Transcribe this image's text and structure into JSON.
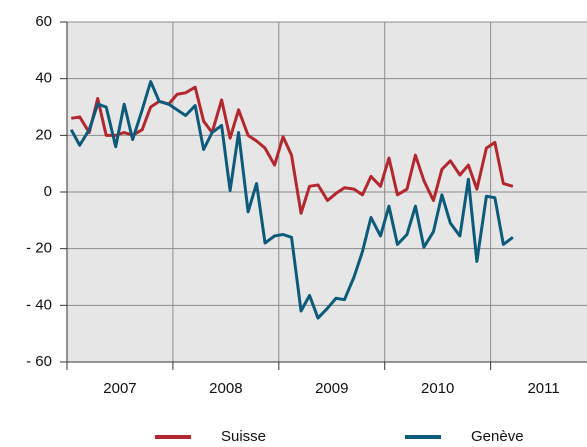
{
  "chart_data": {
    "type": "line",
    "x": [
      2007.04,
      2007.12,
      2007.21,
      2007.29,
      2007.37,
      2007.46,
      2007.54,
      2007.62,
      2007.71,
      2007.79,
      2007.87,
      2007.96,
      2008.04,
      2008.12,
      2008.21,
      2008.29,
      2008.37,
      2008.46,
      2008.54,
      2008.62,
      2008.71,
      2008.79,
      2008.87,
      2008.96,
      2009.04,
      2009.12,
      2009.21,
      2009.29,
      2009.37,
      2009.46,
      2009.54,
      2009.62,
      2009.71,
      2009.79,
      2009.87,
      2009.96,
      2010.04,
      2010.12,
      2010.21,
      2010.29,
      2010.37,
      2010.46,
      2010.54,
      2010.62,
      2010.71,
      2010.79,
      2010.87,
      2010.96,
      2011.04,
      2011.12,
      2011.21
    ],
    "series": [
      {
        "name": "Suisse",
        "color": "#b3282e",
        "values": [
          26,
          26.5,
          21,
          33,
          20,
          20,
          21,
          20,
          22,
          30,
          32,
          31,
          34.5,
          35,
          37,
          25,
          21,
          32.5,
          19,
          29,
          20,
          18,
          15.5,
          9.5,
          19.5,
          13,
          -7.5,
          2,
          2.5,
          -3,
          -0.5,
          1.5,
          1,
          -1,
          5.5,
          2,
          12,
          -1,
          1,
          13,
          4,
          -3,
          8,
          11,
          6,
          9.5,
          1,
          15.5,
          17.5,
          3,
          2
        ]
      },
      {
        "name": "Genève",
        "color": "#0d5b7b",
        "values": [
          22,
          16.5,
          22,
          31,
          30,
          16,
          31,
          18.5,
          29,
          39,
          32,
          31,
          29,
          27,
          30.5,
          15,
          21,
          23.5,
          0.5,
          21,
          -7,
          3,
          -18,
          -15.5,
          -15,
          -16,
          -42,
          -36.5,
          -44.5,
          -41,
          -37.5,
          -38,
          -30,
          -21,
          -9,
          -15.5,
          -5,
          -18.5,
          -15,
          -5,
          -19.5,
          -14,
          -1,
          -11,
          -15.5,
          4.5,
          -24.5,
          -1.5,
          -2,
          -18.5,
          -16
        ]
      }
    ],
    "xlim": [
      2007,
      2011.91
    ],
    "xticks": [
      {
        "value": 2007.5,
        "label": "2007"
      },
      {
        "value": 2008.5,
        "label": "2008"
      },
      {
        "value": 2009.5,
        "label": "2009"
      },
      {
        "value": 2010.5,
        "label": "2010"
      },
      {
        "value": 2011.5,
        "label": "2011"
      }
    ],
    "xgrid": [
      2008,
      2009,
      2010,
      2011
    ],
    "ylim": [
      -60,
      60
    ],
    "yticks": [
      {
        "value": -60,
        "label": "- 60"
      },
      {
        "value": -40,
        "label": "- 40"
      },
      {
        "value": -20,
        "label": "- 20"
      },
      0,
      20,
      40,
      60
    ],
    "grid": true,
    "legend": "bottom"
  }
}
